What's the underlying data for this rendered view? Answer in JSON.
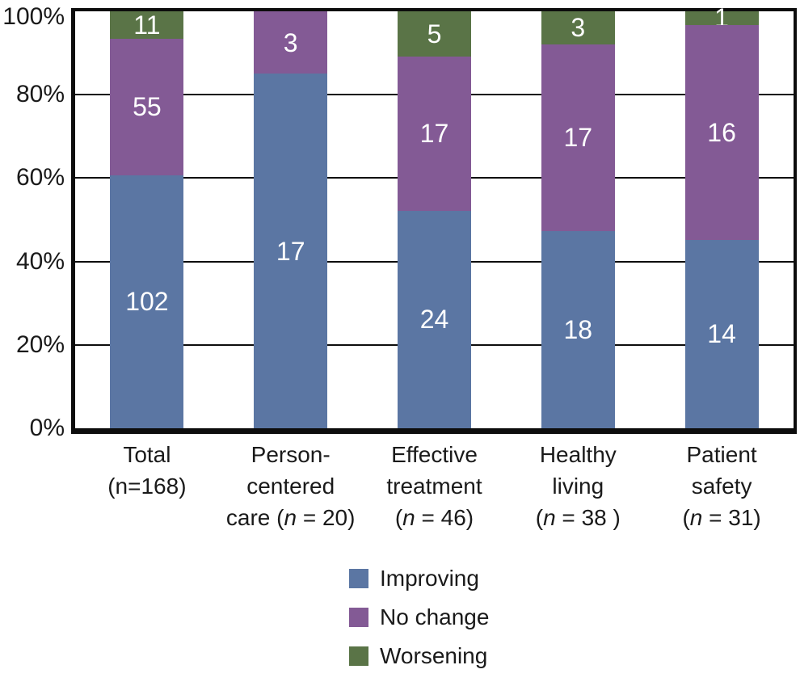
{
  "chart_data": {
    "type": "bar",
    "stacked": true,
    "percent_axis": true,
    "title": "",
    "xlabel": "",
    "ylabel": "",
    "categories": [
      {
        "label_lines": [
          "Total",
          "(n=168)"
        ],
        "n": 168
      },
      {
        "label_lines": [
          "Person-",
          "centered",
          "care (n = 20)"
        ],
        "n": 20
      },
      {
        "label_lines": [
          "Effective",
          "treatment",
          "(n = 46)"
        ],
        "n": 46
      },
      {
        "label_lines": [
          "Healthy",
          "living",
          "(n = 38 )"
        ],
        "n": 38
      },
      {
        "label_lines": [
          "Patient",
          "safety",
          "(n = 31)"
        ],
        "n": 31
      }
    ],
    "series": [
      {
        "name": "Improving",
        "color": "#5b76a3",
        "values": [
          102,
          17,
          24,
          18,
          14
        ]
      },
      {
        "name": "No change",
        "color": "#835a95",
        "values": [
          55,
          3,
          17,
          17,
          16
        ]
      },
      {
        "name": "Worsening",
        "color": "#5a7447",
        "values": [
          11,
          0,
          5,
          3,
          1
        ]
      }
    ],
    "ylim": [
      0,
      100
    ],
    "yticks": [
      0,
      20,
      40,
      60,
      80,
      100
    ],
    "ytick_labels": [
      "0%",
      "20%",
      "40%",
      "60%",
      "80%",
      "100%"
    ],
    "grid": true,
    "legend_position": "bottom-center",
    "colors": {
      "axis": "#0d0d0d",
      "grid": "#0d0d0d",
      "segment_value_text": "#ffffff",
      "text": "#1a1a1a",
      "background": "#ffffff"
    }
  }
}
